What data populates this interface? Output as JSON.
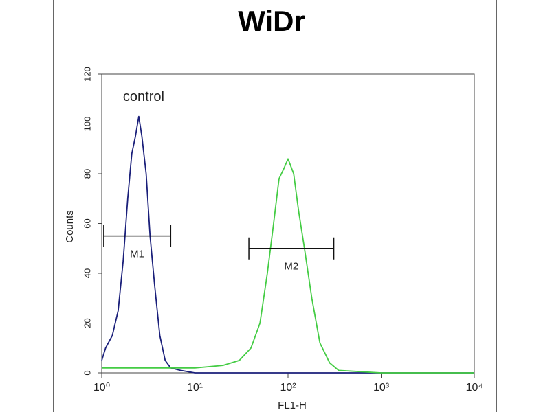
{
  "chart_data": {
    "type": "line",
    "title": "WiDr",
    "xlabel": "FL1-H",
    "ylabel": "Counts",
    "log_x": true,
    "xlim": [
      1,
      10000
    ],
    "ylim": [
      0,
      120
    ],
    "xticks": [
      {
        "value": 1,
        "label": "10⁰"
      },
      {
        "value": 10,
        "label": "10¹"
      },
      {
        "value": 100,
        "label": "10²"
      },
      {
        "value": 1000,
        "label": "10³"
      },
      {
        "value": 10000,
        "label": "10⁴"
      }
    ],
    "yticks": [
      0,
      20,
      40,
      60,
      80,
      100,
      120
    ],
    "series": [
      {
        "name": "control",
        "color": "#1a1f7a",
        "x": [
          1.0,
          1.1,
          1.3,
          1.5,
          1.7,
          1.9,
          2.1,
          2.3,
          2.5,
          2.7,
          3.0,
          3.3,
          3.7,
          4.2,
          4.8,
          5.5,
          7,
          10,
          100,
          10000
        ],
        "values": [
          5,
          10,
          15,
          25,
          45,
          70,
          88,
          95,
          103,
          95,
          80,
          55,
          35,
          15,
          5,
          2,
          1,
          0,
          0,
          0
        ]
      },
      {
        "color": "#44cc44",
        "x": [
          1,
          10,
          20,
          30,
          40,
          50,
          60,
          70,
          80,
          90,
          100,
          115,
          130,
          150,
          180,
          220,
          280,
          350,
          1000,
          10000
        ],
        "values": [
          2,
          2,
          3,
          5,
          10,
          20,
          40,
          60,
          78,
          82,
          86,
          80,
          65,
          50,
          30,
          12,
          4,
          1,
          0,
          0
        ]
      }
    ],
    "gates": [
      {
        "label": "M1",
        "x": [
          1.05,
          5.5
        ],
        "y": 55
      },
      {
        "label": "M2",
        "x": [
          38,
          310
        ],
        "y": 50
      }
    ]
  }
}
